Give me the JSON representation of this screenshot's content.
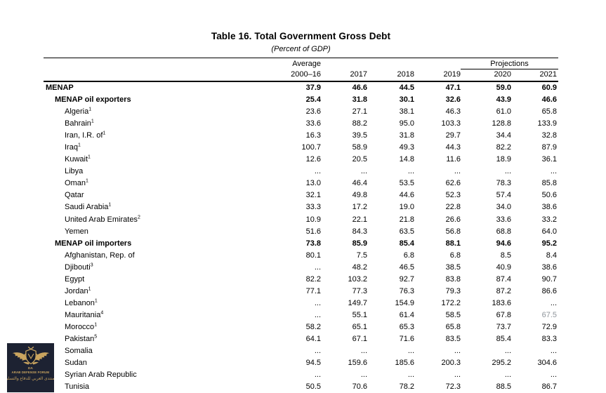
{
  "table": {
    "title": "Table 16. Total Government Gross Debt",
    "subtitle": "(Percent of GDP)",
    "col_groups": {
      "average_label": "Average",
      "projections_label": "Projections"
    },
    "columns": [
      "2000–16",
      "2017",
      "2018",
      "2019",
      "2020",
      "2021"
    ],
    "rows": [
      {
        "label": "MENAP",
        "sup": "",
        "indent": 0,
        "bold": true,
        "values": [
          "37.9",
          "46.6",
          "44.5",
          "47.1",
          "59.0",
          "60.9"
        ]
      },
      {
        "label": "MENAP oil exporters",
        "sup": "",
        "indent": 1,
        "bold": true,
        "values": [
          "25.4",
          "31.8",
          "30.1",
          "32.6",
          "43.9",
          "46.6"
        ]
      },
      {
        "label": "Algeria",
        "sup": "1",
        "indent": 2,
        "bold": false,
        "values": [
          "23.6",
          "27.1",
          "38.1",
          "46.3",
          "61.0",
          "65.8"
        ]
      },
      {
        "label": "Bahrain",
        "sup": "1",
        "indent": 2,
        "bold": false,
        "values": [
          "33.6",
          "88.2",
          "95.0",
          "103.3",
          "128.8",
          "133.9"
        ]
      },
      {
        "label": "Iran, I.R. of",
        "sup": "1",
        "indent": 2,
        "bold": false,
        "values": [
          "16.3",
          "39.5",
          "31.8",
          "29.7",
          "34.4",
          "32.8"
        ]
      },
      {
        "label": "Iraq",
        "sup": "1",
        "indent": 2,
        "bold": false,
        "values": [
          "100.7",
          "58.9",
          "49.3",
          "44.3",
          "82.2",
          "87.9"
        ]
      },
      {
        "label": "Kuwait",
        "sup": "1",
        "indent": 2,
        "bold": false,
        "values": [
          "12.6",
          "20.5",
          "14.8",
          "11.6",
          "18.9",
          "36.1"
        ]
      },
      {
        "label": "Libya",
        "sup": "",
        "indent": 2,
        "bold": false,
        "values": [
          "...",
          "...",
          "...",
          "...",
          "...",
          "..."
        ]
      },
      {
        "label": "Oman",
        "sup": "1",
        "indent": 2,
        "bold": false,
        "values": [
          "13.0",
          "46.4",
          "53.5",
          "62.6",
          "78.3",
          "85.8"
        ]
      },
      {
        "label": "Qatar",
        "sup": "",
        "indent": 2,
        "bold": false,
        "values": [
          "32.1",
          "49.8",
          "44.6",
          "52.3",
          "57.4",
          "50.6"
        ]
      },
      {
        "label": "Saudi Arabia",
        "sup": "1",
        "indent": 2,
        "bold": false,
        "values": [
          "33.3",
          "17.2",
          "19.0",
          "22.8",
          "34.0",
          "38.6"
        ]
      },
      {
        "label": "United Arab Emirates",
        "sup": "2",
        "indent": 2,
        "bold": false,
        "values": [
          "10.9",
          "22.1",
          "21.8",
          "26.6",
          "33.6",
          "33.2"
        ]
      },
      {
        "label": "Yemen",
        "sup": "",
        "indent": 2,
        "bold": false,
        "values": [
          "51.6",
          "84.3",
          "63.5",
          "56.8",
          "68.8",
          "64.0"
        ]
      },
      {
        "label": "MENAP oil importers",
        "sup": "",
        "indent": 1,
        "bold": true,
        "values": [
          "73.8",
          "85.9",
          "85.4",
          "88.1",
          "94.6",
          "95.2"
        ]
      },
      {
        "label": "Afghanistan, Rep. of",
        "sup": "",
        "indent": 2,
        "bold": false,
        "values": [
          "80.1",
          "7.5",
          "6.8",
          "6.8",
          "8.5",
          "8.4"
        ]
      },
      {
        "label": "Djibouti",
        "sup": "3",
        "indent": 2,
        "bold": false,
        "values": [
          "...",
          "48.2",
          "46.5",
          "38.5",
          "40.9",
          "38.6"
        ]
      },
      {
        "label": "Egypt",
        "sup": "",
        "indent": 2,
        "bold": false,
        "values": [
          "82.2",
          "103.2",
          "92.7",
          "83.8",
          "87.4",
          "90.7"
        ]
      },
      {
        "label": "Jordan",
        "sup": "1",
        "indent": 2,
        "bold": false,
        "values": [
          "77.1",
          "77.3",
          "76.3",
          "79.3",
          "87.2",
          "86.6"
        ]
      },
      {
        "label": "Lebanon",
        "sup": "1",
        "indent": 2,
        "bold": false,
        "values": [
          "...",
          "149.7",
          "154.9",
          "172.2",
          "183.6",
          "..."
        ]
      },
      {
        "label": "Mauritania",
        "sup": "4",
        "indent": 2,
        "bold": false,
        "values": [
          "...",
          "55.1",
          "61.4",
          "58.5",
          "67.8",
          "67.5"
        ],
        "muted_col": 5
      },
      {
        "label": "Morocco",
        "sup": "1",
        "indent": 2,
        "bold": false,
        "values": [
          "58.2",
          "65.1",
          "65.3",
          "65.8",
          "73.7",
          "72.9"
        ]
      },
      {
        "label": "Pakistan",
        "sup": "5",
        "indent": 2,
        "bold": false,
        "values": [
          "64.1",
          "67.1",
          "71.6",
          "83.5",
          "85.4",
          "83.3"
        ]
      },
      {
        "label": "Somalia",
        "sup": "",
        "indent": 2,
        "bold": false,
        "values": [
          "...",
          "...",
          "...",
          "...",
          "...",
          "..."
        ]
      },
      {
        "label": "Sudan",
        "sup": "",
        "indent": 2,
        "bold": false,
        "values": [
          "94.5",
          "159.6",
          "185.6",
          "200.3",
          "295.2",
          "304.6"
        ]
      },
      {
        "label": "Syrian Arab Republic",
        "sup": "",
        "indent": 2,
        "bold": false,
        "values": [
          "...",
          "...",
          "...",
          "...",
          "...",
          "..."
        ]
      },
      {
        "label": "Tunisia",
        "sup": "",
        "indent": 2,
        "bold": false,
        "values": [
          "50.5",
          "70.6",
          "78.2",
          "72.3",
          "88.5",
          "86.7"
        ]
      }
    ]
  },
  "watermark": {
    "monogram": "DA",
    "forum_name": "ARAB DEFENSE FORUM",
    "arabic_name": "المنتدى العربي للدفاع والتسليح",
    "colors": {
      "background": "#1d2232",
      "gold": "#c9a45f"
    }
  }
}
